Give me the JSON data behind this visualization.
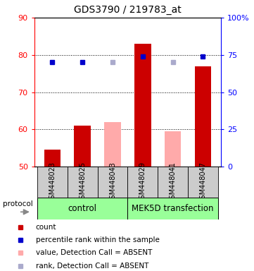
{
  "title": "GDS3790 / 219783_at",
  "samples": [
    "GSM448023",
    "GSM448025",
    "GSM448043",
    "GSM448029",
    "GSM448041",
    "GSM448047"
  ],
  "bar_values": [
    54.5,
    61.0,
    62.0,
    83.0,
    59.5,
    77.0
  ],
  "bar_colors": [
    "#cc0000",
    "#cc0000",
    "#ffaaaa",
    "#cc0000",
    "#ffaaaa",
    "#cc0000"
  ],
  "rank_values": [
    78.0,
    78.0,
    78.0,
    79.5,
    78.0,
    79.5
  ],
  "rank_colors": [
    "#0000cc",
    "#0000cc",
    "#aaaacc",
    "#0000cc",
    "#aaaacc",
    "#0000cc"
  ],
  "ylim_left": [
    50,
    90
  ],
  "ylim_right": [
    0,
    100
  ],
  "yticks_left": [
    50,
    60,
    70,
    80,
    90
  ],
  "yticks_right": [
    0,
    25,
    50,
    75,
    100
  ],
  "ytick_labels_right": [
    "0",
    "25",
    "50",
    "75",
    "100%"
  ],
  "control_label": "control",
  "transfection_label": "MEK5D transfection",
  "protocol_label": "protocol",
  "group_color": "#99ff99",
  "legend_items": [
    {
      "label": "count",
      "color": "#cc0000"
    },
    {
      "label": "percentile rank within the sample",
      "color": "#0000cc"
    },
    {
      "label": "value, Detection Call = ABSENT",
      "color": "#ffaaaa"
    },
    {
      "label": "rank, Detection Call = ABSENT",
      "color": "#aaaacc"
    }
  ],
  "bar_width": 0.55,
  "sample_box_color": "#cccccc",
  "base_value": 50,
  "title_fontsize": 10,
  "tick_label_fontsize": 8,
  "sample_label_fontsize": 7
}
